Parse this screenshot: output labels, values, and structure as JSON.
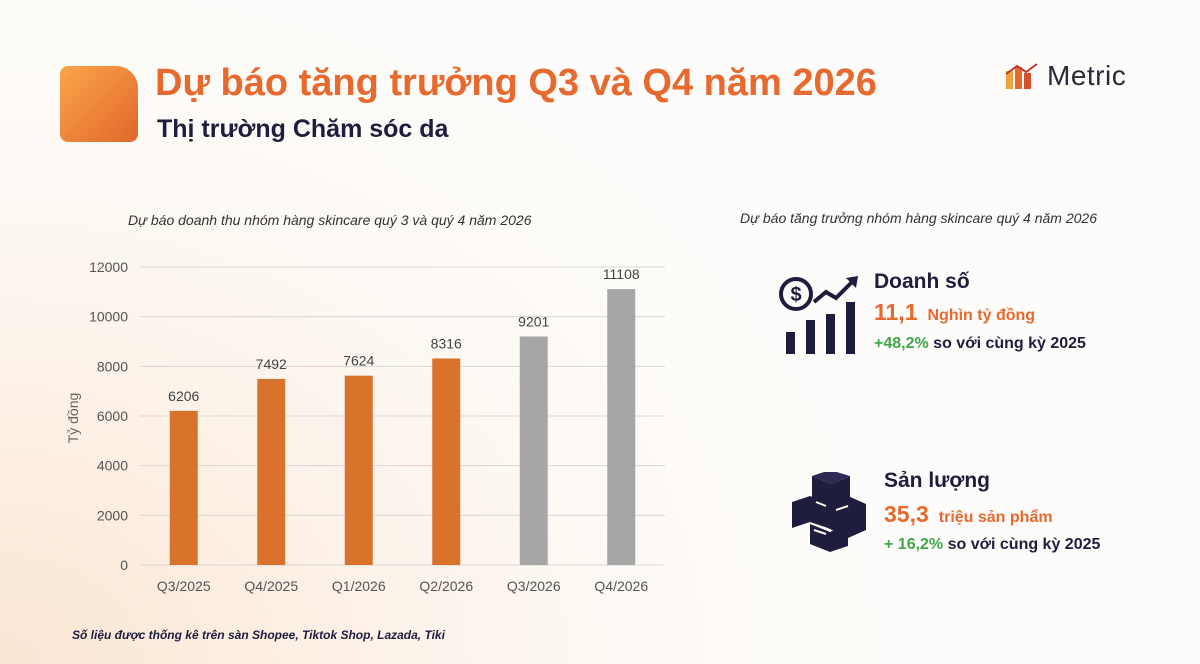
{
  "header": {
    "title": "Dự báo tăng trưởng Q3 và Q4 năm 2026",
    "subtitle": "Thị trường Chăm sóc da",
    "brand": "Metric"
  },
  "chart_data": {
    "type": "bar",
    "title": "Dự báo doanh thu nhóm hàng skincare quý 3 và quý 4 năm 2026",
    "xlabel": "",
    "ylabel": "Tỷ đồng",
    "categories": [
      "Q3/2025",
      "Q4/2025",
      "Q1/2026",
      "Q2/2026",
      "Q3/2026",
      "Q4/2026"
    ],
    "values": [
      6206,
      7492,
      7624,
      8316,
      9201,
      11108
    ],
    "data_labels": [
      "6206",
      "7492",
      "7624",
      "8316",
      "9201",
      "11108"
    ],
    "bar_colors": [
      "#d9722b",
      "#d9722b",
      "#d9722b",
      "#d9722b",
      "#a6a6a6",
      "#a6a6a6"
    ],
    "ylim": [
      0,
      12000
    ],
    "yticks": [
      0,
      2000,
      4000,
      6000,
      8000,
      10000,
      12000
    ],
    "ytick_labels": [
      "0",
      "2000",
      "4000",
      "6000",
      "8000",
      "10000",
      "12000"
    ],
    "grid": true
  },
  "right_panel": {
    "title": "Dự báo tăng trưởng nhóm hàng skincare quý 4 năm 2026",
    "revenue": {
      "icon": "revenue-growth-icon",
      "label": "Doanh số",
      "value": "11,1",
      "unit": "Nghìn tỷ đồng",
      "growth": "+48,2%",
      "growth_text": "so với cùng kỳ 2025"
    },
    "volume": {
      "icon": "boxes-icon",
      "label": "Sản lượng",
      "value": "35,3",
      "unit": "triệu sản phẩm",
      "growth": "+ 16,2%",
      "growth_text": "so với cùng kỳ 2025"
    }
  },
  "footnote": "Số liệu được thống kê trên sàn Shopee, Tiktok Shop, Lazada, Tiki",
  "colors": {
    "accent": "#e8692e",
    "navy": "#1f1d3d",
    "positive": "#3ea84a",
    "bar_actual": "#d9722b",
    "bar_forecast": "#a6a6a6"
  }
}
